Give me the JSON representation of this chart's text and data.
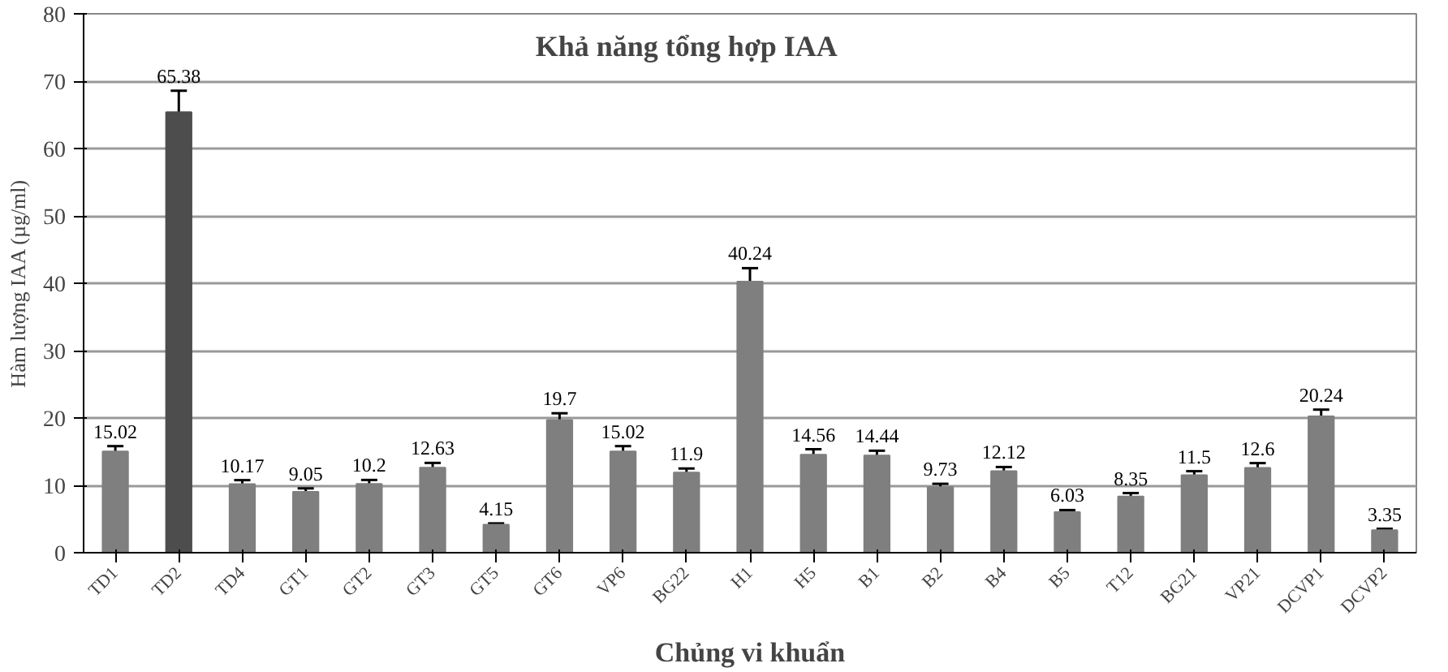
{
  "chart_data": {
    "type": "bar",
    "title": "Khả năng tổng hợp IAA",
    "xlabel": "Chủng vi khuẩn",
    "ylabel": "Hàm lượng IAA (µg/ml)",
    "categories": [
      "TD1",
      "TD2",
      "TD4",
      "GT1",
      "GT2",
      "GT3",
      "GT5",
      "GT6",
      "VP6",
      "BG22",
      "H1",
      "H5",
      "B1",
      "B2",
      "B4",
      "B5",
      "T12",
      "BG21",
      "VP21",
      "DCVP1",
      "DCVP2"
    ],
    "values": [
      15.02,
      65.38,
      10.17,
      9.05,
      10.2,
      12.63,
      4.15,
      19.7,
      15.02,
      11.9,
      40.24,
      14.56,
      14.44,
      9.73,
      12.12,
      6.03,
      8.35,
      11.5,
      12.6,
      20.24,
      3.35
    ],
    "colors": [
      "#7f7f7f",
      "#4d4d4d",
      "#7f7f7f",
      "#7f7f7f",
      "#7f7f7f",
      "#7f7f7f",
      "#7f7f7f",
      "#7f7f7f",
      "#7f7f7f",
      "#7f7f7f",
      "#7f7f7f",
      "#7f7f7f",
      "#7f7f7f",
      "#7f7f7f",
      "#7f7f7f",
      "#7f7f7f",
      "#7f7f7f",
      "#7f7f7f",
      "#7f7f7f",
      "#7f7f7f",
      "#7f7f7f"
    ],
    "errors": [
      0.8,
      3.2,
      0.6,
      0.5,
      0.6,
      0.7,
      0.2,
      1.0,
      0.8,
      0.6,
      2.0,
      0.8,
      0.7,
      0.5,
      0.6,
      0.3,
      0.5,
      0.6,
      0.7,
      1.0,
      0.2
    ],
    "ylim": [
      0,
      80
    ],
    "yticks": [
      0,
      10,
      20,
      30,
      40,
      50,
      60,
      70,
      80
    ],
    "grid": "y",
    "data_labels": true
  }
}
